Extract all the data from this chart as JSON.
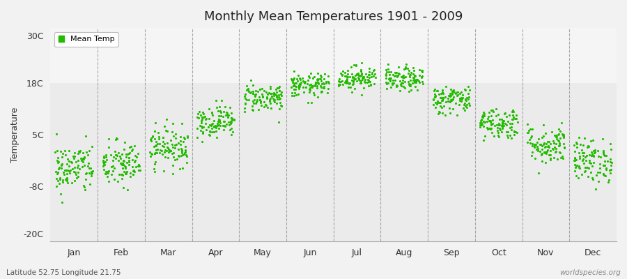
{
  "title": "Monthly Mean Temperatures 1901 - 2009",
  "ylabel": "Temperature",
  "yticks": [
    -20,
    -8,
    5,
    18,
    30
  ],
  "ytick_labels": [
    "-20C",
    "-8C",
    "5C",
    "18C",
    "30C"
  ],
  "ylim": [
    -22,
    32
  ],
  "month_names": [
    "Jan",
    "Feb",
    "Mar",
    "Apr",
    "May",
    "Jun",
    "Jul",
    "Aug",
    "Sep",
    "Oct",
    "Nov",
    "Dec"
  ],
  "dot_color": "#22bb00",
  "bg_color": "#ebebeb",
  "bg_upper": "#f5f5f5",
  "subtitle_left": "Latitude 52.75 Longitude 21.75",
  "subtitle_right": "worldspecies.org",
  "legend_label": "Mean Temp",
  "mean_temps": [
    -3.5,
    -2.5,
    2.0,
    8.5,
    14.5,
    17.5,
    19.5,
    19.0,
    14.0,
    8.0,
    2.5,
    -1.5
  ],
  "std_temps": [
    3.2,
    3.0,
    2.5,
    2.0,
    1.8,
    1.5,
    1.5,
    1.5,
    1.8,
    2.0,
    2.5,
    2.8
  ],
  "n_years": 109
}
